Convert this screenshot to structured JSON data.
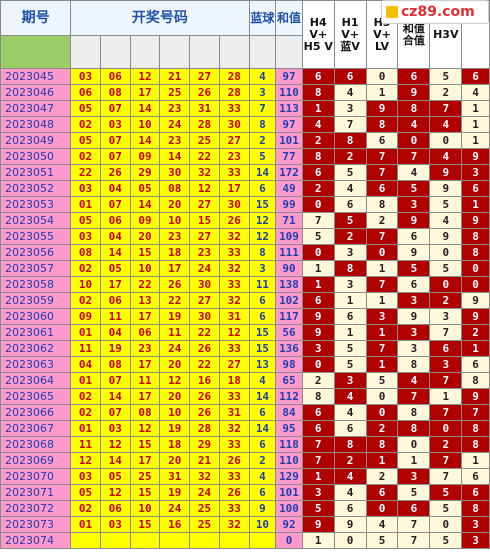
{
  "header": {
    "period": "期号",
    "draw_numbers": "开奖号码",
    "blue_ball": "蓝球",
    "sum": "和值",
    "h4": "H4 V+ H5 V",
    "h1": "H1 V+ 蓝V",
    "h5": "H5 V+ LV",
    "heV": "和值合值",
    "h3v": "H3V"
  },
  "watermark": {
    "icon": "square-logo-icon",
    "text": "cz89.com"
  },
  "rows": [
    {
      "p": "2023045",
      "n": [
        "03",
        "06",
        "12",
        "21",
        "27",
        "28"
      ],
      "b": "4",
      "s": "97",
      "v": [
        [
          "6",
          "R"
        ],
        [
          "6",
          "R"
        ],
        [
          "0",
          "W"
        ],
        [
          "6",
          "R"
        ],
        [
          "5",
          "W"
        ],
        [
          "6",
          "R"
        ]
      ]
    },
    {
      "p": "2023046",
      "n": [
        "06",
        "08",
        "17",
        "25",
        "26",
        "28"
      ],
      "b": "3",
      "s": "110",
      "v": [
        [
          "8",
          "R"
        ],
        [
          "4",
          "W"
        ],
        [
          "1",
          "W"
        ],
        [
          "9",
          "R"
        ],
        [
          "2",
          "W"
        ],
        [
          "4",
          "W"
        ]
      ]
    },
    {
      "p": "2023047",
      "n": [
        "05",
        "07",
        "14",
        "23",
        "31",
        "33"
      ],
      "b": "7",
      "s": "113",
      "v": [
        [
          "1",
          "R"
        ],
        [
          "3",
          "W"
        ],
        [
          "9",
          "R"
        ],
        [
          "8",
          "R"
        ],
        [
          "7",
          "R"
        ],
        [
          "1",
          "W"
        ]
      ]
    },
    {
      "p": "2023048",
      "n": [
        "02",
        "03",
        "10",
        "24",
        "28",
        "30"
      ],
      "b": "8",
      "s": "97",
      "v": [
        [
          "4",
          "R"
        ],
        [
          "7",
          "W"
        ],
        [
          "8",
          "R"
        ],
        [
          "4",
          "R"
        ],
        [
          "4",
          "R"
        ],
        [
          "1",
          "W"
        ]
      ]
    },
    {
      "p": "2023049",
      "n": [
        "05",
        "07",
        "14",
        "23",
        "25",
        "27"
      ],
      "b": "2",
      "s": "101",
      "v": [
        [
          "2",
          "R"
        ],
        [
          "8",
          "R"
        ],
        [
          "6",
          "W"
        ],
        [
          "0",
          "R"
        ],
        [
          "0",
          "W"
        ],
        [
          "1",
          "W"
        ]
      ]
    },
    {
      "p": "2023050",
      "n": [
        "02",
        "07",
        "09",
        "14",
        "22",
        "23"
      ],
      "b": "5",
      "s": "77",
      "v": [
        [
          "8",
          "R"
        ],
        [
          "2",
          "R"
        ],
        [
          "7",
          "R"
        ],
        [
          "7",
          "R"
        ],
        [
          "4",
          "R"
        ],
        [
          "9",
          "R"
        ]
      ]
    },
    {
      "p": "2023051",
      "n": [
        "22",
        "26",
        "29",
        "30",
        "32",
        "33"
      ],
      "b": "14",
      "s": "172",
      "v": [
        [
          "6",
          "R"
        ],
        [
          "5",
          "W"
        ],
        [
          "7",
          "R"
        ],
        [
          "4",
          "W"
        ],
        [
          "9",
          "R"
        ],
        [
          "3",
          "R"
        ]
      ]
    },
    {
      "p": "2023052",
      "n": [
        "03",
        "04",
        "05",
        "08",
        "12",
        "17"
      ],
      "b": "6",
      "s": "49",
      "v": [
        [
          "2",
          "R"
        ],
        [
          "4",
          "W"
        ],
        [
          "6",
          "R"
        ],
        [
          "5",
          "R"
        ],
        [
          "9",
          "W"
        ],
        [
          "6",
          "R"
        ]
      ]
    },
    {
      "p": "2023053",
      "n": [
        "01",
        "07",
        "14",
        "20",
        "27",
        "30"
      ],
      "b": "15",
      "s": "99",
      "v": [
        [
          "0",
          "R"
        ],
        [
          "6",
          "W"
        ],
        [
          "8",
          "W"
        ],
        [
          "3",
          "R"
        ],
        [
          "5",
          "W"
        ],
        [
          "1",
          "R"
        ]
      ]
    },
    {
      "p": "2023054",
      "n": [
        "05",
        "06",
        "09",
        "10",
        "15",
        "26"
      ],
      "b": "12",
      "s": "71",
      "v": [
        [
          "7",
          "W"
        ],
        [
          "5",
          "R"
        ],
        [
          "2",
          "W"
        ],
        [
          "9",
          "R"
        ],
        [
          "4",
          "W"
        ],
        [
          "9",
          "R"
        ]
      ]
    },
    {
      "p": "2023055",
      "n": [
        "03",
        "04",
        "20",
        "23",
        "27",
        "32"
      ],
      "b": "12",
      "s": "109",
      "v": [
        [
          "5",
          "W"
        ],
        [
          "2",
          "R"
        ],
        [
          "7",
          "R"
        ],
        [
          "6",
          "W"
        ],
        [
          "9",
          "W"
        ],
        [
          "8",
          "R"
        ]
      ]
    },
    {
      "p": "2023056",
      "n": [
        "08",
        "14",
        "15",
        "18",
        "23",
        "33"
      ],
      "b": "8",
      "s": "111",
      "v": [
        [
          "0",
          "R"
        ],
        [
          "3",
          "W"
        ],
        [
          "0",
          "R"
        ],
        [
          "9",
          "W"
        ],
        [
          "0",
          "W"
        ],
        [
          "8",
          "R"
        ]
      ]
    },
    {
      "p": "2023057",
      "n": [
        "02",
        "05",
        "10",
        "17",
        "24",
        "32"
      ],
      "b": "3",
      "s": "90",
      "v": [
        [
          "1",
          "W"
        ],
        [
          "8",
          "R"
        ],
        [
          "1",
          "W"
        ],
        [
          "5",
          "R"
        ],
        [
          "5",
          "W"
        ],
        [
          "0",
          "R"
        ]
      ]
    },
    {
      "p": "2023058",
      "n": [
        "10",
        "17",
        "22",
        "26",
        "30",
        "33"
      ],
      "b": "11",
      "s": "138",
      "v": [
        [
          "1",
          "R"
        ],
        [
          "3",
          "W"
        ],
        [
          "7",
          "R"
        ],
        [
          "6",
          "W"
        ],
        [
          "0",
          "R"
        ],
        [
          "0",
          "R"
        ]
      ]
    },
    {
      "p": "2023059",
      "n": [
        "02",
        "06",
        "13",
        "22",
        "27",
        "32"
      ],
      "b": "6",
      "s": "102",
      "v": [
        [
          "6",
          "R"
        ],
        [
          "1",
          "W"
        ],
        [
          "1",
          "W"
        ],
        [
          "3",
          "R"
        ],
        [
          "2",
          "R"
        ],
        [
          "9",
          "W"
        ]
      ]
    },
    {
      "p": "2023060",
      "n": [
        "09",
        "11",
        "17",
        "19",
        "30",
        "31"
      ],
      "b": "6",
      "s": "117",
      "v": [
        [
          "9",
          "R"
        ],
        [
          "6",
          "W"
        ],
        [
          "3",
          "R"
        ],
        [
          "9",
          "W"
        ],
        [
          "3",
          "W"
        ],
        [
          "9",
          "R"
        ]
      ]
    },
    {
      "p": "2023061",
      "n": [
        "01",
        "04",
        "06",
        "11",
        "22",
        "12"
      ],
      "b": "15",
      "s": "56",
      "v": [
        [
          "9",
          "R"
        ],
        [
          "1",
          "W"
        ],
        [
          "1",
          "R"
        ],
        [
          "3",
          "R"
        ],
        [
          "7",
          "W"
        ],
        [
          "2",
          "R"
        ]
      ]
    },
    {
      "p": "2023062",
      "n": [
        "11",
        "19",
        "23",
        "24",
        "26",
        "33"
      ],
      "b": "15",
      "s": "136",
      "v": [
        [
          "3",
          "R"
        ],
        [
          "5",
          "W"
        ],
        [
          "7",
          "R"
        ],
        [
          "3",
          "W"
        ],
        [
          "6",
          "R"
        ],
        [
          "1",
          "R"
        ]
      ]
    },
    {
      "p": "2023063",
      "n": [
        "04",
        "08",
        "17",
        "20",
        "22",
        "27"
      ],
      "b": "13",
      "s": "98",
      "v": [
        [
          "0",
          "R"
        ],
        [
          "5",
          "W"
        ],
        [
          "1",
          "R"
        ],
        [
          "8",
          "W"
        ],
        [
          "3",
          "R"
        ],
        [
          "6",
          "W"
        ]
      ]
    },
    {
      "p": "2023064",
      "n": [
        "01",
        "07",
        "11",
        "12",
        "16",
        "18"
      ],
      "b": "4",
      "s": "65",
      "v": [
        [
          "2",
          "W"
        ],
        [
          "3",
          "R"
        ],
        [
          "5",
          "W"
        ],
        [
          "4",
          "R"
        ],
        [
          "7",
          "R"
        ],
        [
          "8",
          "W"
        ]
      ]
    },
    {
      "p": "2023065",
      "n": [
        "02",
        "14",
        "17",
        "20",
        "26",
        "33"
      ],
      "b": "14",
      "s": "112",
      "v": [
        [
          "8",
          "W"
        ],
        [
          "4",
          "R"
        ],
        [
          "0",
          "W"
        ],
        [
          "7",
          "R"
        ],
        [
          "1",
          "W"
        ],
        [
          "9",
          "R"
        ]
      ]
    },
    {
      "p": "2023066",
      "n": [
        "02",
        "07",
        "08",
        "10",
        "26",
        "31"
      ],
      "b": "6",
      "s": "84",
      "v": [
        [
          "6",
          "R"
        ],
        [
          "4",
          "W"
        ],
        [
          "0",
          "R"
        ],
        [
          "8",
          "W"
        ],
        [
          "7",
          "R"
        ],
        [
          "7",
          "R"
        ]
      ]
    },
    {
      "p": "2023067",
      "n": [
        "01",
        "03",
        "12",
        "19",
        "28",
        "32"
      ],
      "b": "14",
      "s": "95",
      "v": [
        [
          "6",
          "R"
        ],
        [
          "6",
          "W"
        ],
        [
          "2",
          "R"
        ],
        [
          "8",
          "R"
        ],
        [
          "0",
          "R"
        ],
        [
          "8",
          "R"
        ]
      ]
    },
    {
      "p": "2023068",
      "n": [
        "11",
        "12",
        "15",
        "18",
        "29",
        "33"
      ],
      "b": "6",
      "s": "118",
      "v": [
        [
          "7",
          "R"
        ],
        [
          "8",
          "R"
        ],
        [
          "8",
          "R"
        ],
        [
          "0",
          "W"
        ],
        [
          "2",
          "R"
        ],
        [
          "8",
          "R"
        ]
      ]
    },
    {
      "p": "2023069",
      "n": [
        "12",
        "14",
        "17",
        "20",
        "21",
        "26"
      ],
      "b": "2",
      "s": "110",
      "v": [
        [
          "7",
          "R"
        ],
        [
          "2",
          "R"
        ],
        [
          "1",
          "R"
        ],
        [
          "1",
          "W"
        ],
        [
          "7",
          "R"
        ],
        [
          "1",
          "W"
        ]
      ]
    },
    {
      "p": "2023070",
      "n": [
        "03",
        "05",
        "25",
        "31",
        "32",
        "33"
      ],
      "b": "4",
      "s": "129",
      "v": [
        [
          "1",
          "R"
        ],
        [
          "4",
          "R"
        ],
        [
          "2",
          "W"
        ],
        [
          "3",
          "R"
        ],
        [
          "7",
          "W"
        ],
        [
          "6",
          "W"
        ]
      ]
    },
    {
      "p": "2023071",
      "n": [
        "05",
        "12",
        "15",
        "19",
        "24",
        "26"
      ],
      "b": "6",
      "s": "101",
      "v": [
        [
          "3",
          "R"
        ],
        [
          "4",
          "W"
        ],
        [
          "6",
          "R"
        ],
        [
          "5",
          "W"
        ],
        [
          "5",
          "R"
        ],
        [
          "6",
          "R"
        ]
      ]
    },
    {
      "p": "2023072",
      "n": [
        "02",
        "06",
        "10",
        "24",
        "25",
        "33"
      ],
      "b": "9",
      "s": "100",
      "v": [
        [
          "5",
          "R"
        ],
        [
          "6",
          "W"
        ],
        [
          "0",
          "R"
        ],
        [
          "6",
          "R"
        ],
        [
          "5",
          "W"
        ],
        [
          "8",
          "R"
        ]
      ]
    },
    {
      "p": "2023073",
      "n": [
        "01",
        "03",
        "15",
        "16",
        "25",
        "32"
      ],
      "b": "10",
      "s": "92",
      "v": [
        [
          "9",
          "R"
        ],
        [
          "9",
          "W"
        ],
        [
          "4",
          "W"
        ],
        [
          "7",
          "W"
        ],
        [
          "0",
          "W"
        ],
        [
          "3",
          "R"
        ]
      ]
    },
    {
      "p": "2023074",
      "n": [
        "",
        "",
        "",
        "",
        "",
        ""
      ],
      "b": "",
      "s": "0",
      "v": [
        [
          "1",
          "W"
        ],
        [
          "0",
          "W"
        ],
        [
          "5",
          "W"
        ],
        [
          "7",
          "W"
        ],
        [
          "5",
          "W"
        ],
        [
          "3",
          "R"
        ]
      ]
    }
  ]
}
